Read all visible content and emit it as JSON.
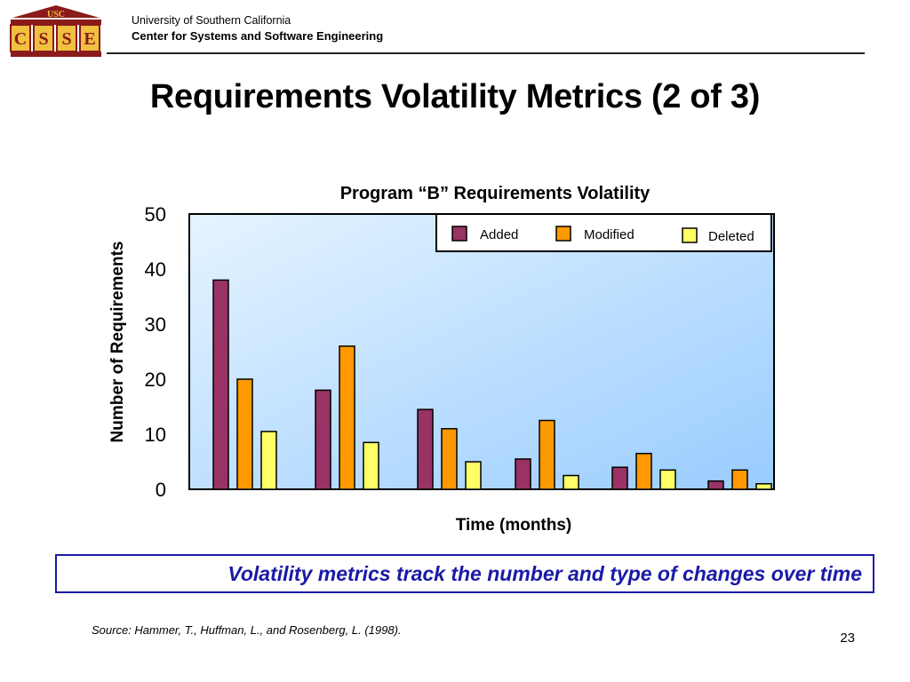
{
  "header": {
    "logo_text": "USC",
    "logo_letters": [
      "C",
      "S",
      "S",
      "E"
    ],
    "org_line1": "University of Southern California",
    "org_line2": "Center for Systems and Software Engineering"
  },
  "slide": {
    "title": "Requirements Volatility Metrics (2 of 3)",
    "caption": "Volatility metrics track the number and type of changes  over time",
    "source": "Source: Hammer, T., Huffman, L., and Rosenberg, L. (1998).",
    "page_number": "23"
  },
  "chart_data": {
    "type": "bar",
    "title": "Program “B” Requirements Volatility",
    "xlabel": "Time (months)",
    "ylabel": "Number of Requirements",
    "ylim": [
      0,
      50
    ],
    "yticks": [
      0,
      10,
      20,
      30,
      40,
      50
    ],
    "categories": [
      "",
      "",
      "",
      "",
      "",
      ""
    ],
    "series": [
      {
        "name": "Added",
        "color": "#993366",
        "values": [
          38,
          18,
          14.5,
          5.5,
          4,
          1.5
        ]
      },
      {
        "name": "Modified",
        "color": "#ff9900",
        "values": [
          20,
          26,
          11,
          12.5,
          6.5,
          3.5
        ]
      },
      {
        "name": "Deleted",
        "color": "#ffff66",
        "values": [
          10.5,
          8.5,
          5,
          2.5,
          3.5,
          1
        ]
      }
    ],
    "legend": "top-right",
    "grid": false,
    "plot_background": [
      "#e6f4ff",
      "#99ccff"
    ]
  }
}
